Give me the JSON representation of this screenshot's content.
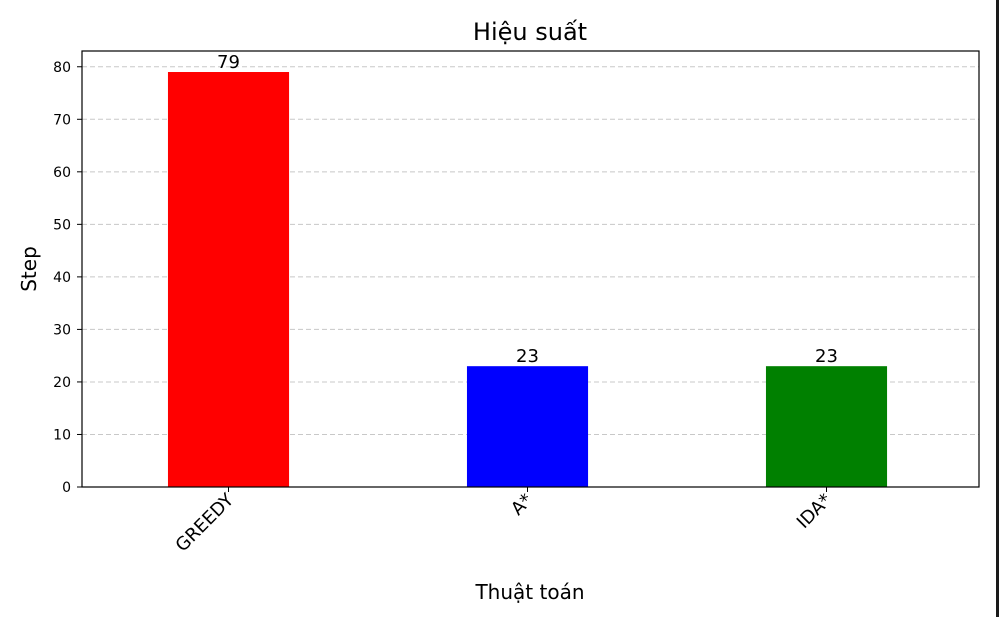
{
  "chart_data": {
    "type": "bar",
    "title": "Hiệu suất",
    "xlabel": "Thuật toán",
    "ylabel": "Step",
    "categories": [
      "GREEDY",
      "A*",
      "IDA*"
    ],
    "values": [
      79,
      23,
      23
    ],
    "colors": [
      "#ff0000",
      "#0000ff",
      "#008000"
    ],
    "data_labels": [
      "79",
      "23",
      "23"
    ],
    "ylim": [
      0,
      83
    ],
    "yticks": [
      0,
      10,
      20,
      30,
      40,
      50,
      60,
      70,
      80
    ],
    "grid": "y-dashed",
    "legend": "none"
  }
}
